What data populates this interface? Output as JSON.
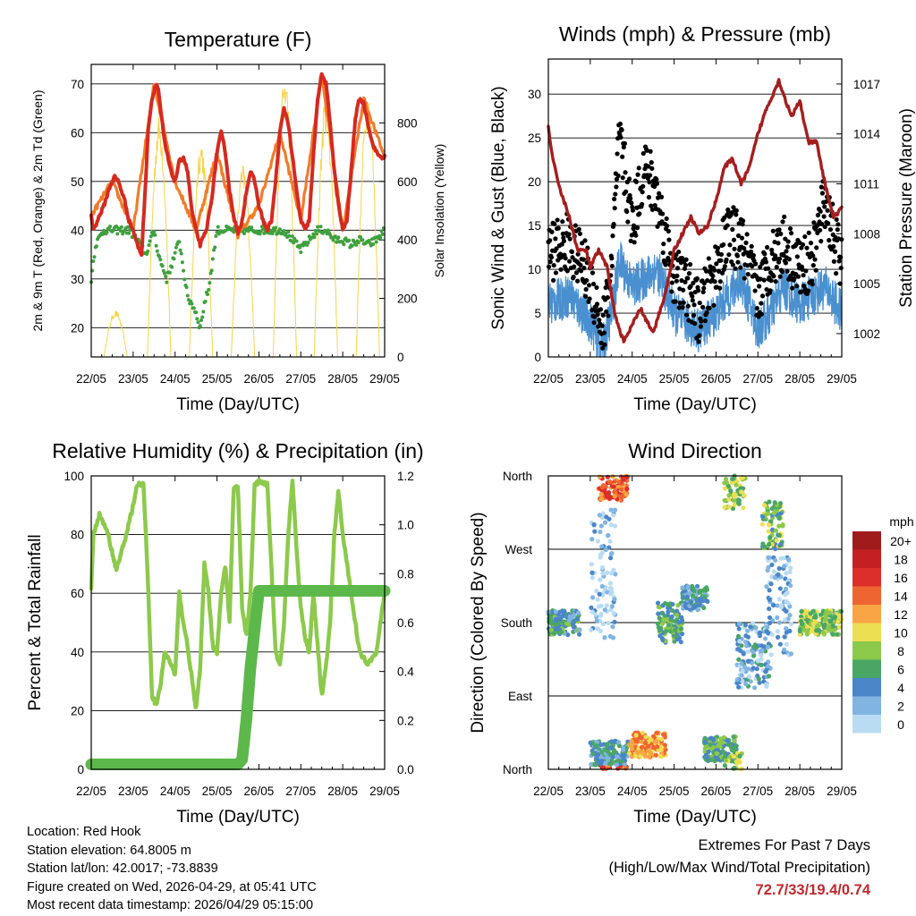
{
  "chart_data": [
    {
      "type": "line",
      "title": "Temperature (F)",
      "xlabel": "Time (Day/UTC)",
      "ylabel": "2m & 9m T (Red, Orange) & 2m Td (Green)",
      "y2label": "Solar Insolation (Yellow)",
      "x_ticks": [
        "22/05",
        "23/05",
        "24/05",
        "25/05",
        "26/05",
        "27/05",
        "28/05",
        "29/05"
      ],
      "ylim": [
        14,
        74
      ],
      "y_ticks": [
        20,
        30,
        40,
        50,
        60,
        70
      ],
      "y2lim": [
        0,
        1000
      ],
      "y2_ticks": [
        0,
        200,
        400,
        600,
        800
      ],
      "series": [
        {
          "name": "2m T",
          "color": "#d42a20",
          "x": [
            0,
            0.05,
            0.15,
            0.3,
            0.45,
            0.55,
            0.65,
            0.8,
            0.9,
            1.0,
            1.1,
            1.2,
            1.3,
            1.35,
            1.45,
            1.55,
            1.6,
            1.65,
            1.75,
            1.9,
            2.0,
            2.1,
            2.2,
            2.3,
            2.4,
            2.5,
            2.6,
            2.75,
            2.9,
            3.0,
            3.1,
            3.2,
            3.3,
            3.4,
            3.5,
            3.6,
            3.7,
            3.8,
            3.9,
            4.0,
            4.1,
            4.2,
            4.3,
            4.4,
            4.5,
            4.6,
            4.7,
            4.8,
            4.9,
            5.0,
            5.1,
            5.2,
            5.3,
            5.4,
            5.5,
            5.6,
            5.7,
            5.8,
            5.9,
            6.0,
            6.1,
            6.2,
            6.3,
            6.4,
            6.5,
            6.6,
            6.7,
            6.8,
            6.9,
            7.0
          ],
          "values": [
            43,
            40,
            42,
            45,
            49,
            51,
            50,
            46,
            42,
            40,
            37,
            35,
            50,
            60,
            67,
            70,
            69,
            65,
            58,
            52,
            50,
            54,
            55,
            52,
            44,
            40,
            37,
            40,
            48,
            56,
            60,
            56,
            48,
            43,
            39,
            42,
            48,
            52,
            50,
            45,
            42,
            40,
            42,
            50,
            60,
            65,
            62,
            55,
            48,
            42,
            40,
            42,
            55,
            67,
            72,
            70,
            62,
            52,
            45,
            40,
            42,
            52,
            63,
            67,
            66,
            62,
            58,
            56,
            55,
            55
          ]
        },
        {
          "name": "9m T",
          "color": "#f07c2a",
          "x": [
            0,
            0.5,
            1.0,
            1.5,
            2.0,
            2.5,
            3.0,
            3.5,
            4.0,
            4.5,
            5.0,
            5.5,
            6.0,
            6.5,
            7.0
          ],
          "values": [
            43,
            50,
            40,
            70,
            50,
            40,
            56,
            39,
            45,
            60,
            42,
            72,
            40,
            67,
            55
          ]
        },
        {
          "name": "2m Td",
          "color": "#3fa03f",
          "x": [
            0,
            0.1,
            0.3,
            0.5,
            0.7,
            0.9,
            1.1,
            1.3,
            1.5,
            1.6,
            1.8,
            2.0,
            2.1,
            2.2,
            2.3,
            2.4,
            2.5,
            2.6,
            2.7,
            2.8,
            3.0,
            3.2,
            3.4,
            3.6,
            3.8,
            4.0,
            4.2,
            4.4,
            4.6,
            4.8,
            5.0,
            5.2,
            5.4,
            5.6,
            5.8,
            6.0,
            6.2,
            6.4,
            6.6,
            6.8,
            7.0
          ],
          "values": [
            30,
            37,
            40,
            40,
            40,
            40,
            38,
            35,
            40,
            35,
            30,
            35,
            38,
            32,
            26,
            25,
            23,
            20,
            25,
            28,
            40,
            40,
            40,
            40,
            40,
            40,
            40,
            40,
            40,
            38,
            36,
            38,
            40,
            40,
            38,
            38,
            37,
            38,
            37,
            38,
            40
          ]
        }
      ],
      "insolation": {
        "name": "Solar Insolation",
        "color": "#f5d44a",
        "peaks": [
          {
            "x": 0.58,
            "y": 160
          },
          {
            "x": 1.62,
            "y": 830
          },
          {
            "x": 2.62,
            "y": 750
          },
          {
            "x": 3.62,
            "y": 660
          },
          {
            "x": 4.62,
            "y": 980
          },
          {
            "x": 5.6,
            "y": 900
          },
          {
            "x": 6.6,
            "y": 920
          }
        ]
      }
    },
    {
      "type": "scatter",
      "title": "Winds (mph) & Pressure (mb)",
      "xlabel": "Time (Day/UTC)",
      "ylabel": "Sonic Wind & Gust (Blue, Black)",
      "y2label": "Station Pressure (Maroon)",
      "x_ticks": [
        "22/05",
        "23/05",
        "24/05",
        "25/05",
        "26/05",
        "27/05",
        "28/05",
        "29/05"
      ],
      "ylim": [
        0,
        34
      ],
      "y_ticks": [
        0,
        5,
        10,
        15,
        20,
        25,
        30
      ],
      "y2lim": [
        1000.6,
        1018.5
      ],
      "y2_ticks": [
        1002,
        1005,
        1008,
        1011,
        1014,
        1017
      ],
      "series": [
        {
          "name": "Wind",
          "color": "#4a90d0",
          "x": [
            0,
            0.5,
            1.0,
            1.3,
            1.5,
            1.7,
            2.0,
            2.3,
            2.6,
            3.0,
            3.3,
            3.6,
            4.0,
            4.3,
            4.6,
            5.0,
            5.3,
            5.6,
            6.0,
            6.3,
            6.6,
            7.0
          ],
          "values": [
            6,
            7,
            4,
            1,
            5,
            11,
            8,
            9,
            10,
            5,
            4,
            3,
            5,
            7,
            9,
            3,
            5,
            8,
            6,
            7,
            8,
            5
          ]
        },
        {
          "name": "Gust",
          "color": "#000000",
          "x": [
            0,
            0.5,
            1.0,
            1.3,
            1.5,
            1.7,
            2.0,
            2.3,
            2.6,
            3.0,
            3.3,
            3.6,
            4.0,
            4.3,
            4.6,
            5.0,
            5.3,
            5.6,
            6.0,
            6.3,
            6.6,
            7.0
          ],
          "values": [
            12,
            13,
            9,
            3,
            10,
            25,
            15,
            22,
            18,
            9,
            8,
            5,
            10,
            14,
            13,
            7,
            11,
            13,
            10,
            11,
            18,
            10
          ]
        },
        {
          "name": "Pressure",
          "color": "#a41e1e",
          "x": [
            0,
            0.1,
            0.3,
            0.5,
            0.7,
            0.9,
            1.0,
            1.2,
            1.4,
            1.6,
            1.8,
            2.0,
            2.2,
            2.5,
            2.8,
            3.0,
            3.2,
            3.4,
            3.6,
            3.8,
            4.0,
            4.2,
            4.4,
            4.6,
            4.8,
            5.0,
            5.2,
            5.5,
            5.8,
            6.0,
            6.2,
            6.4,
            6.6,
            6.8,
            7.0
          ],
          "values": [
            1014.5,
            1012.5,
            1010.5,
            1009,
            1007,
            1007,
            1006,
            1007,
            1006,
            1003,
            1001.5,
            1002.5,
            1003.5,
            1002,
            1004.5,
            1007,
            1008,
            1009,
            1008,
            1008.5,
            1010,
            1012,
            1012.5,
            1011,
            1012,
            1014,
            1015.5,
            1017.2,
            1015,
            1016,
            1013.5,
            1013.5,
            1011,
            1009,
            1009.5
          ]
        }
      ]
    },
    {
      "type": "line",
      "title": "Relative Humidity (%) & Precipitation (in)",
      "xlabel": "Time (Day/UTC)",
      "ylabel": "Percent & Total Rainfall",
      "x_ticks": [
        "22/05",
        "23/05",
        "24/05",
        "25/05",
        "26/05",
        "27/05",
        "28/05",
        "29/05"
      ],
      "ylim": [
        0,
        100
      ],
      "y_ticks": [
        0,
        20,
        40,
        60,
        80,
        100
      ],
      "y2lim": [
        0,
        1.2
      ],
      "y2_ticks": [
        "0.0",
        "0.2",
        "0.4",
        "0.6",
        "0.8",
        "1.0",
        "1.2"
      ],
      "series": [
        {
          "name": "Relative Humidity",
          "color": "#8cc94c",
          "x": [
            0,
            0.05,
            0.2,
            0.4,
            0.6,
            0.8,
            1.0,
            1.1,
            1.25,
            1.35,
            1.45,
            1.55,
            1.65,
            1.75,
            1.9,
            2.0,
            2.1,
            2.2,
            2.3,
            2.5,
            2.6,
            2.7,
            2.8,
            2.9,
            3.0,
            3.1,
            3.2,
            3.3,
            3.4,
            3.5,
            3.6,
            3.7,
            3.8,
            3.9,
            4.0,
            4.2,
            4.4,
            4.5,
            4.6,
            4.7,
            4.8,
            4.9,
            5.0,
            5.1,
            5.2,
            5.3,
            5.5,
            5.6,
            5.7,
            5.8,
            5.9,
            6.0,
            6.2,
            6.4,
            6.6,
            6.8,
            7.0
          ],
          "values": [
            62,
            80,
            87,
            80,
            68,
            78,
            90,
            97,
            97,
            65,
            25,
            22,
            28,
            40,
            36,
            32,
            60,
            50,
            42,
            20,
            35,
            70,
            60,
            42,
            40,
            60,
            70,
            50,
            96,
            96,
            55,
            45,
            60,
            97,
            98,
            97,
            40,
            35,
            50,
            80,
            98,
            75,
            55,
            45,
            40,
            60,
            25,
            35,
            50,
            80,
            95,
            80,
            60,
            40,
            36,
            40,
            60
          ]
        },
        {
          "name": "Total Precipitation",
          "color": "#5cb84a",
          "x": [
            0,
            3.5,
            3.6,
            3.7,
            3.8,
            4.0,
            7.0
          ],
          "values": [
            0.02,
            0.02,
            0.04,
            0.2,
            0.42,
            0.73,
            0.73
          ]
        }
      ]
    },
    {
      "type": "scatter",
      "title": "Wind Direction",
      "xlabel": "Time (Day/UTC)",
      "ylabel": "Direction (Colored By Speed)",
      "x_ticks": [
        "22/05",
        "23/05",
        "24/05",
        "25/05",
        "26/05",
        "27/05",
        "28/05",
        "29/05"
      ],
      "y_ticks": [
        "North",
        "East",
        "South",
        "West",
        "North"
      ],
      "legend_title": "mph",
      "legend_labels": [
        "20+",
        "18",
        "16",
        "14",
        "12",
        "10",
        "8",
        "6",
        "4",
        "2",
        "0"
      ],
      "legend_colors": [
        "#a01b1b",
        "#c42024",
        "#dc2e2a",
        "#ef6531",
        "#f7a545",
        "#ecdf52",
        "#8cc84a",
        "#4aa665",
        "#4a85c7",
        "#81b4e1",
        "#b9dcf3"
      ],
      "clusters": [
        {
          "x0": 0.0,
          "x1": 0.75,
          "dir": 180,
          "spread": 15,
          "speed": 5
        },
        {
          "x0": 1.2,
          "x1": 1.9,
          "dir": 350,
          "spread": 20,
          "speed": 14
        },
        {
          "x0": 1.0,
          "x1": 1.6,
          "dir": 240,
          "spread": 80,
          "speed": 1
        },
        {
          "x0": 1.0,
          "x1": 1.9,
          "dir": 20,
          "spread": 15,
          "speed": 4
        },
        {
          "x0": 1.9,
          "x1": 2.8,
          "dir": 30,
          "spread": 15,
          "speed": 12
        },
        {
          "x0": 2.6,
          "x1": 3.2,
          "dir": 180,
          "spread": 25,
          "speed": 6
        },
        {
          "x0": 3.2,
          "x1": 3.8,
          "dir": 210,
          "spread": 15,
          "speed": 4
        },
        {
          "x0": 3.7,
          "x1": 4.5,
          "dir": 25,
          "spread": 15,
          "speed": 6
        },
        {
          "x0": 4.2,
          "x1": 4.7,
          "dir": 350,
          "spread": 30,
          "speed": 8
        },
        {
          "x0": 4.5,
          "x1": 5.3,
          "dir": 140,
          "spread": 40,
          "speed": 3
        },
        {
          "x0": 5.1,
          "x1": 5.6,
          "dir": 300,
          "spread": 30,
          "speed": 7
        },
        {
          "x0": 5.2,
          "x1": 5.8,
          "dir": 200,
          "spread": 60,
          "speed": 2
        },
        {
          "x0": 6.0,
          "x1": 7.0,
          "dir": 180,
          "spread": 15,
          "speed": 8
        }
      ]
    }
  ],
  "footer": {
    "location": "Location: Red Hook",
    "elevation": "Station elevation: 64.8005 m",
    "latlon": "Station lat/lon: 42.0017; -73.8839",
    "created": "Figure created on Wed, 2026-04-29, at 05:41 UTC",
    "recent": "Most recent data timestamp: 2026/04/29 05:15:00"
  },
  "extremes": {
    "title": "Extremes For Past 7 Days",
    "subtitle": "(High/Low/Max Wind/Total Precipitation)",
    "values": "72.7/33/19.4/0.74"
  }
}
